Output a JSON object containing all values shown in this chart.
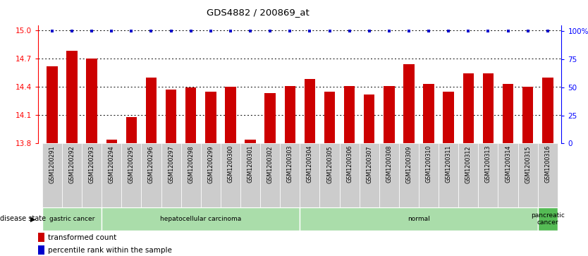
{
  "title": "GDS4882 / 200869_at",
  "samples": [
    "GSM1200291",
    "GSM1200292",
    "GSM1200293",
    "GSM1200294",
    "GSM1200295",
    "GSM1200296",
    "GSM1200297",
    "GSM1200298",
    "GSM1200299",
    "GSM1200300",
    "GSM1200301",
    "GSM1200302",
    "GSM1200303",
    "GSM1200304",
    "GSM1200305",
    "GSM1200306",
    "GSM1200307",
    "GSM1200308",
    "GSM1200309",
    "GSM1200310",
    "GSM1200311",
    "GSM1200312",
    "GSM1200313",
    "GSM1200314",
    "GSM1200315",
    "GSM1200316"
  ],
  "red_values": [
    14.62,
    14.78,
    14.7,
    13.84,
    14.08,
    14.5,
    14.37,
    14.39,
    14.35,
    14.4,
    13.84,
    14.33,
    14.41,
    14.48,
    14.35,
    14.41,
    14.32,
    14.41,
    14.64,
    14.43,
    14.35,
    14.54,
    14.54,
    14.43,
    14.4,
    14.5
  ],
  "ylim_left": [
    13.8,
    15.05
  ],
  "yticks_left": [
    13.8,
    14.1,
    14.4,
    14.7,
    15.0
  ],
  "ylim_right": [
    0,
    105
  ],
  "yticks_right": [
    0,
    25,
    50,
    75,
    100
  ],
  "yticklabels_right": [
    "0",
    "25",
    "50",
    "75",
    "100%"
  ],
  "bar_color": "#cc0000",
  "dot_color": "#0000cc",
  "groups": [
    {
      "label": "gastric cancer",
      "start": 0,
      "end": 3,
      "color": "#aaddaa"
    },
    {
      "label": "hepatocellular carcinoma",
      "start": 3,
      "end": 13,
      "color": "#aaddaa"
    },
    {
      "label": "normal",
      "start": 13,
      "end": 25,
      "color": "#aaddaa"
    },
    {
      "label": "pancreatic\ncancer",
      "start": 25,
      "end": 26,
      "color": "#55bb55"
    }
  ],
  "legend_transformed": "transformed count",
  "legend_percentile": "percentile rank within the sample",
  "disease_state_label": "disease state",
  "background_color": "#ffffff",
  "tick_bg_color": "#cccccc"
}
